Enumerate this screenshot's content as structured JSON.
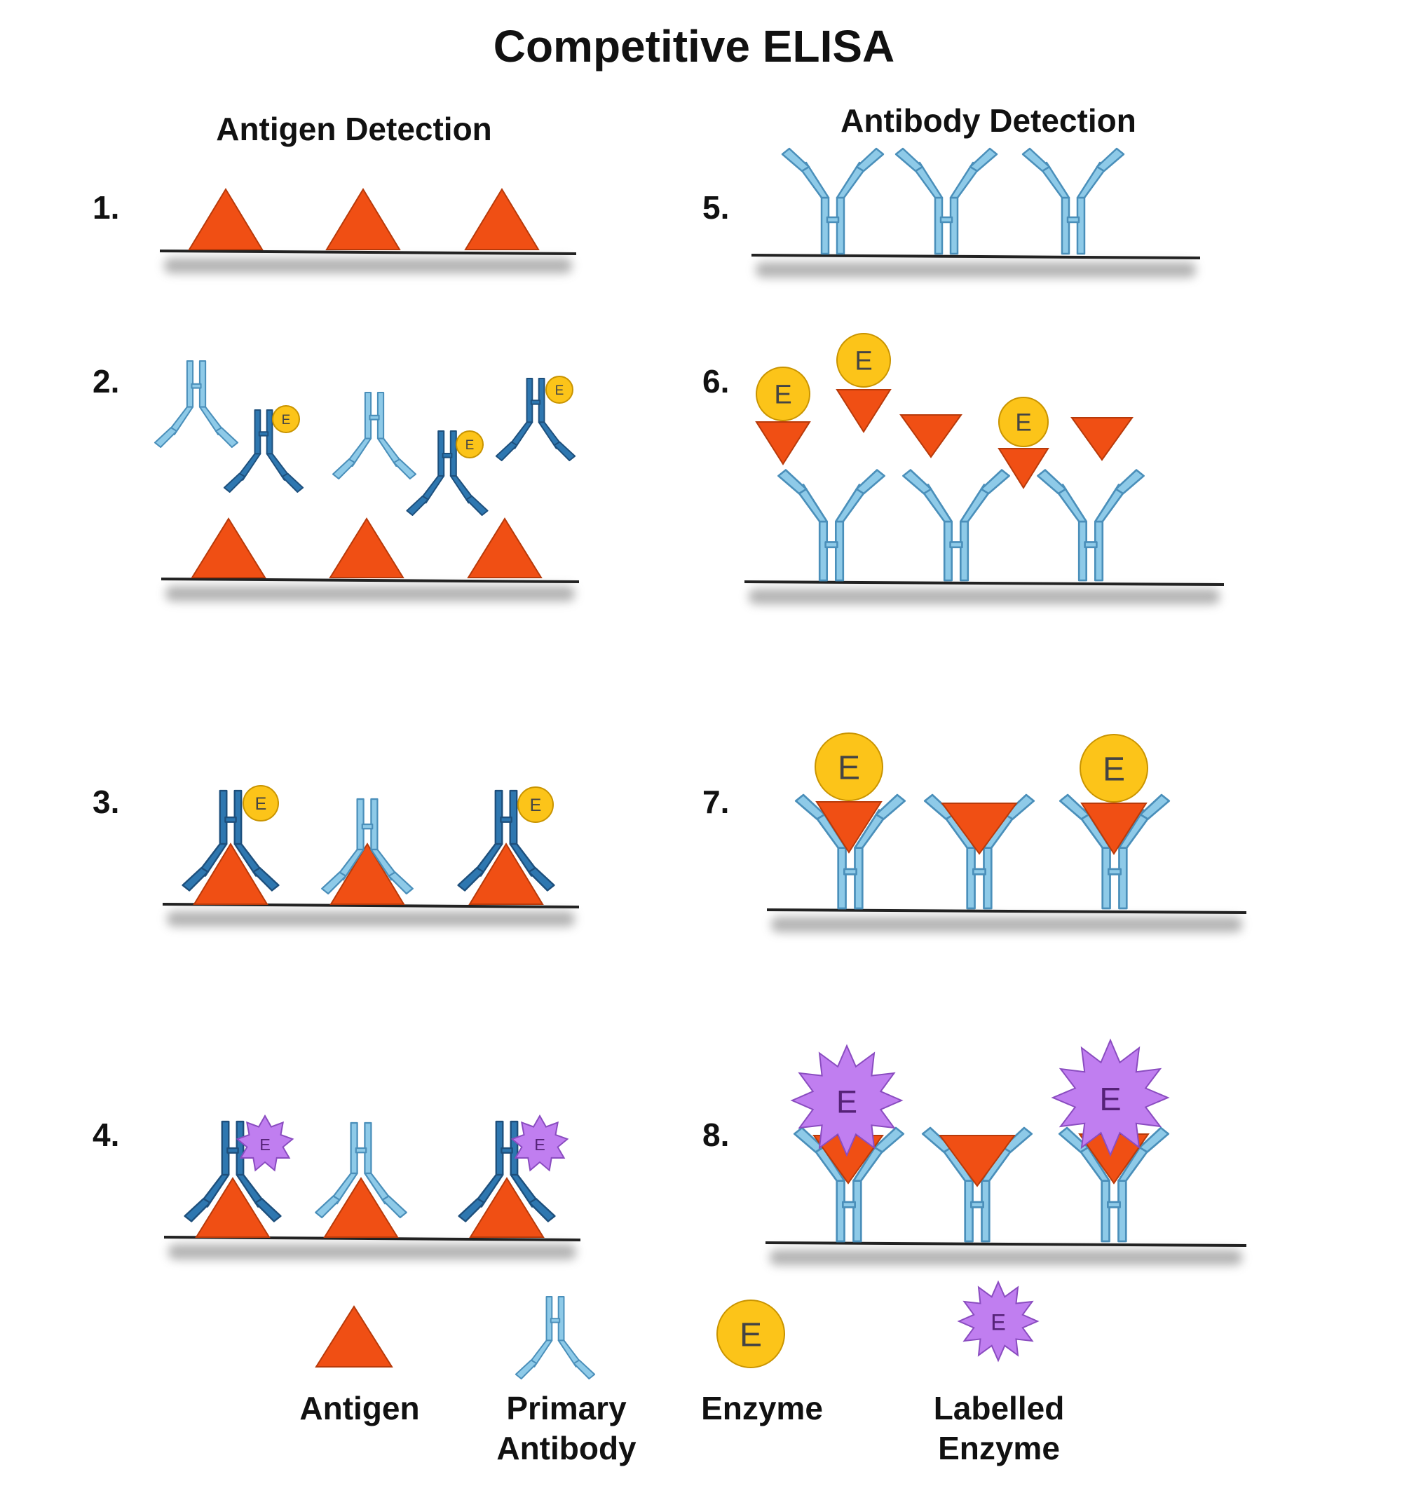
{
  "title": "Competitive ELISA",
  "left_heading": "Antigen Detection",
  "right_heading": "Antibody Detection",
  "step_labels": [
    "1.",
    "2.",
    "3.",
    "4.",
    "5.",
    "6.",
    "7.",
    "8."
  ],
  "enzyme_letter": "E",
  "legend": {
    "antigen": "Antigen",
    "primary_antibody_line1": "Primary",
    "primary_antibody_line2": "Antibody",
    "enzyme": "Enzyme",
    "labelled_enzyme_line1": "Labelled",
    "labelled_enzyme_line2": "Enzyme"
  },
  "colors": {
    "antigen": "#f04f14",
    "antigen_stroke": "#b83a0a",
    "light_antibody": "#8ecae8",
    "light_antibody_stroke": "#4a8fba",
    "dark_antibody": "#2e77b0",
    "dark_antibody_stroke": "#1d4f7c",
    "enzyme": "#fcc419",
    "enzyme_stroke": "#c99400",
    "labelled_enzyme": "#c07ef0",
    "labelled_enzyme_stroke": "#8a4cc0"
  }
}
